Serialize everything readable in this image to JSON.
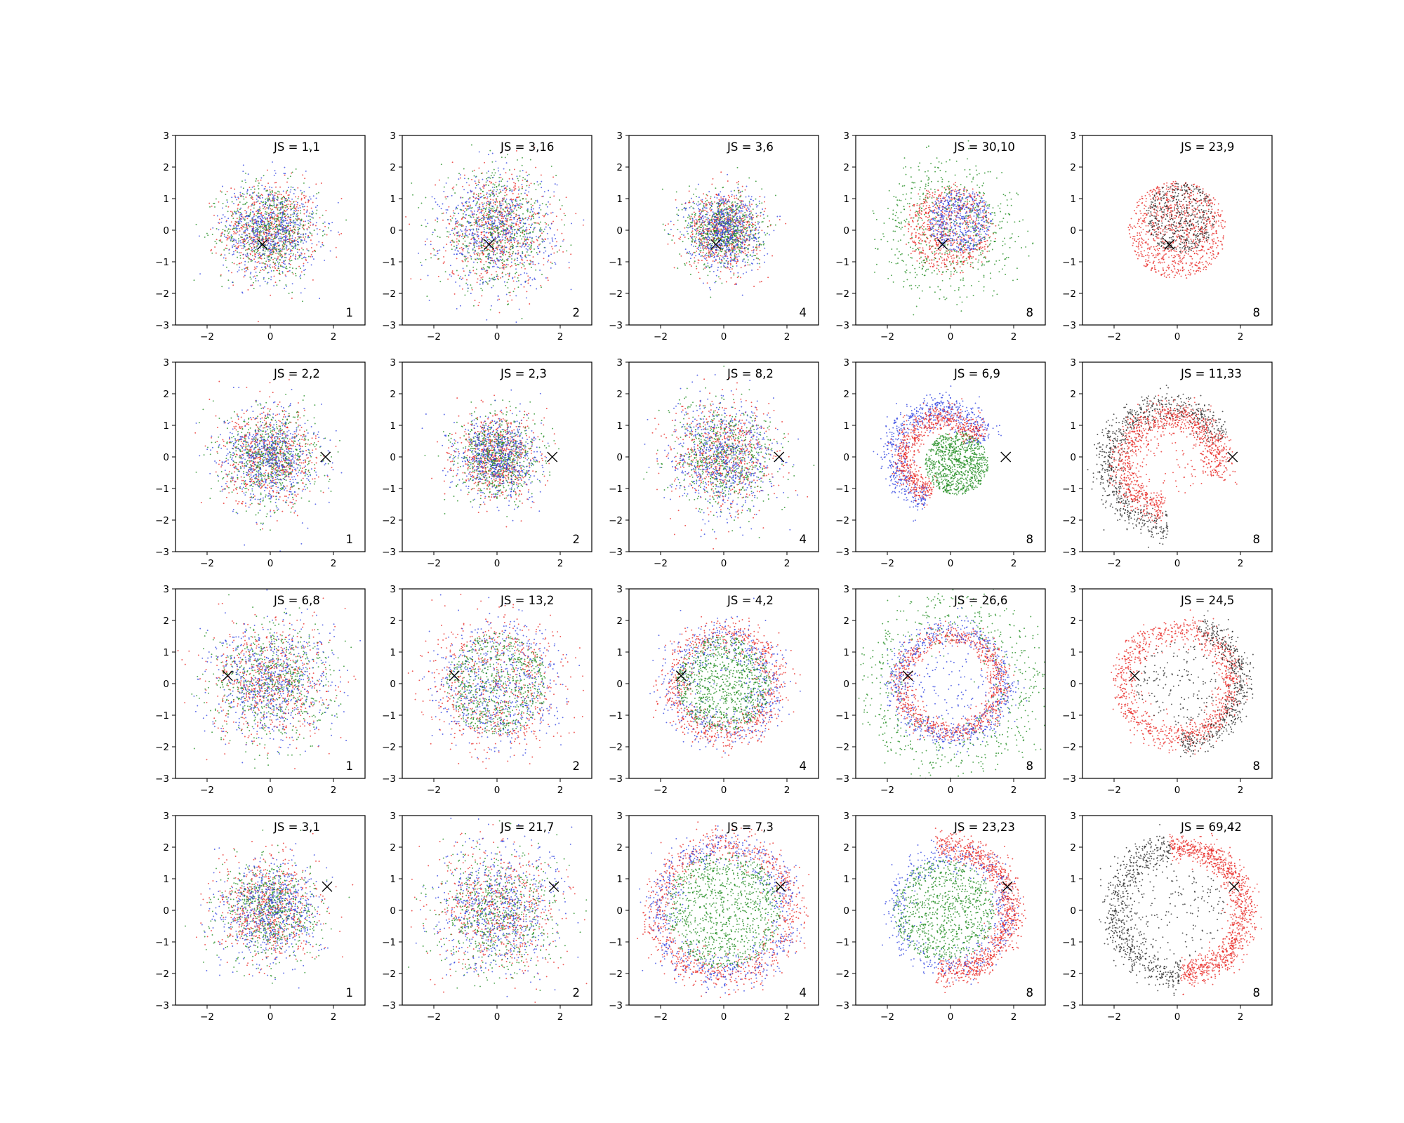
{
  "figure": {
    "axis_range": [
      -3,
      3
    ],
    "x_ticks": [
      -2,
      0,
      2
    ],
    "y_ticks": [
      -3,
      -2,
      -1,
      0,
      1,
      2,
      3
    ],
    "title": "",
    "xlabel": "",
    "ylabel": ""
  },
  "colors": {
    "red": "#e8231f",
    "green": "#1a8a1a",
    "blue": "#2a3de0",
    "black": "#222222",
    "marker": "#000000"
  },
  "chart_data": [
    {
      "type": "scatter",
      "row": 0,
      "col": 0,
      "js": "JS = 1,1",
      "k": "1",
      "marker": [
        -0.25,
        -0.45
      ],
      "pattern": "gaussian",
      "spread": 0.75
    },
    {
      "type": "scatter",
      "row": 0,
      "col": 1,
      "js": "JS = 3,16",
      "k": "2",
      "marker": [
        -0.25,
        -0.45
      ],
      "pattern": "gaussian",
      "spread": 0.9
    },
    {
      "type": "scatter",
      "row": 0,
      "col": 2,
      "js": "JS = 3,6",
      "k": "4",
      "marker": [
        -0.25,
        -0.45
      ],
      "pattern": "gaussian",
      "spread": 0.6
    },
    {
      "type": "scatter",
      "row": 0,
      "col": 3,
      "js": "JS = 30,10",
      "k": "8",
      "marker": [
        -0.25,
        -0.45
      ],
      "pattern": "disk-halo",
      "spread": 0.7
    },
    {
      "type": "scatter",
      "row": 0,
      "col": 4,
      "js": "JS = 23,9",
      "k": "8",
      "marker": [
        -0.25,
        -0.45
      ],
      "pattern": "disk-rb",
      "spread": 0.7
    },
    {
      "type": "scatter",
      "row": 1,
      "col": 0,
      "js": "JS = 2,2",
      "k": "1",
      "marker": [
        1.75,
        0.0
      ],
      "pattern": "gaussian",
      "spread": 0.75
    },
    {
      "type": "scatter",
      "row": 1,
      "col": 1,
      "js": "JS = 2,3",
      "k": "2",
      "marker": [
        1.75,
        0.0
      ],
      "pattern": "gaussian",
      "spread": 0.65
    },
    {
      "type": "scatter",
      "row": 1,
      "col": 2,
      "js": "JS = 8,2",
      "k": "4",
      "marker": [
        1.75,
        0.0
      ],
      "pattern": "gaussian",
      "spread": 0.85
    },
    {
      "type": "scatter",
      "row": 1,
      "col": 3,
      "js": "JS = 6,9",
      "k": "8",
      "marker": [
        1.75,
        0.0
      ],
      "pattern": "crescent-g",
      "spread": 0.8
    },
    {
      "type": "scatter",
      "row": 1,
      "col": 4,
      "js": "JS = 11,33",
      "k": "8",
      "marker": [
        1.75,
        0.0
      ],
      "pattern": "crescent-rb",
      "spread": 0.8
    },
    {
      "type": "scatter",
      "row": 2,
      "col": 0,
      "js": "JS = 6,8",
      "k": "1",
      "marker": [
        -1.35,
        0.25
      ],
      "pattern": "gaussian",
      "spread": 0.95
    },
    {
      "type": "scatter",
      "row": 2,
      "col": 1,
      "js": "JS = 13,2",
      "k": "2",
      "marker": [
        -1.35,
        0.25
      ],
      "pattern": "ring-soft",
      "spread": 1.0
    },
    {
      "type": "scatter",
      "row": 2,
      "col": 2,
      "js": "JS = 4,2",
      "k": "4",
      "marker": [
        -1.35,
        0.25
      ],
      "pattern": "ring-g",
      "spread": 1.0
    },
    {
      "type": "scatter",
      "row": 2,
      "col": 3,
      "js": "JS = 26,6",
      "k": "8",
      "marker": [
        -1.35,
        0.25
      ],
      "pattern": "ring-halo",
      "spread": 1.0
    },
    {
      "type": "scatter",
      "row": 2,
      "col": 4,
      "js": "JS = 24,5",
      "k": "8",
      "marker": [
        -1.35,
        0.25
      ],
      "pattern": "ring-rb",
      "spread": 1.0
    },
    {
      "type": "scatter",
      "row": 3,
      "col": 0,
      "js": "JS = 3,1",
      "k": "1",
      "marker": [
        1.8,
        0.75
      ],
      "pattern": "gaussian",
      "spread": 0.8
    },
    {
      "type": "scatter",
      "row": 3,
      "col": 1,
      "js": "JS = 21,7",
      "k": "2",
      "marker": [
        1.8,
        0.75
      ],
      "pattern": "gaussian",
      "spread": 1.0
    },
    {
      "type": "scatter",
      "row": 3,
      "col": 2,
      "js": "JS = 7,3",
      "k": "4",
      "marker": [
        1.8,
        0.75
      ],
      "pattern": "ring-g-big",
      "spread": 1.0
    },
    {
      "type": "scatter",
      "row": 3,
      "col": 3,
      "js": "JS = 23,23",
      "k": "8",
      "marker": [
        1.8,
        0.75
      ],
      "pattern": "ring-g-shift",
      "spread": 1.0
    },
    {
      "type": "scatter",
      "row": 3,
      "col": 4,
      "js": "JS = 69,42",
      "k": "8",
      "marker": [
        1.8,
        0.75
      ],
      "pattern": "ring-rb-shift",
      "spread": 1.0
    }
  ]
}
